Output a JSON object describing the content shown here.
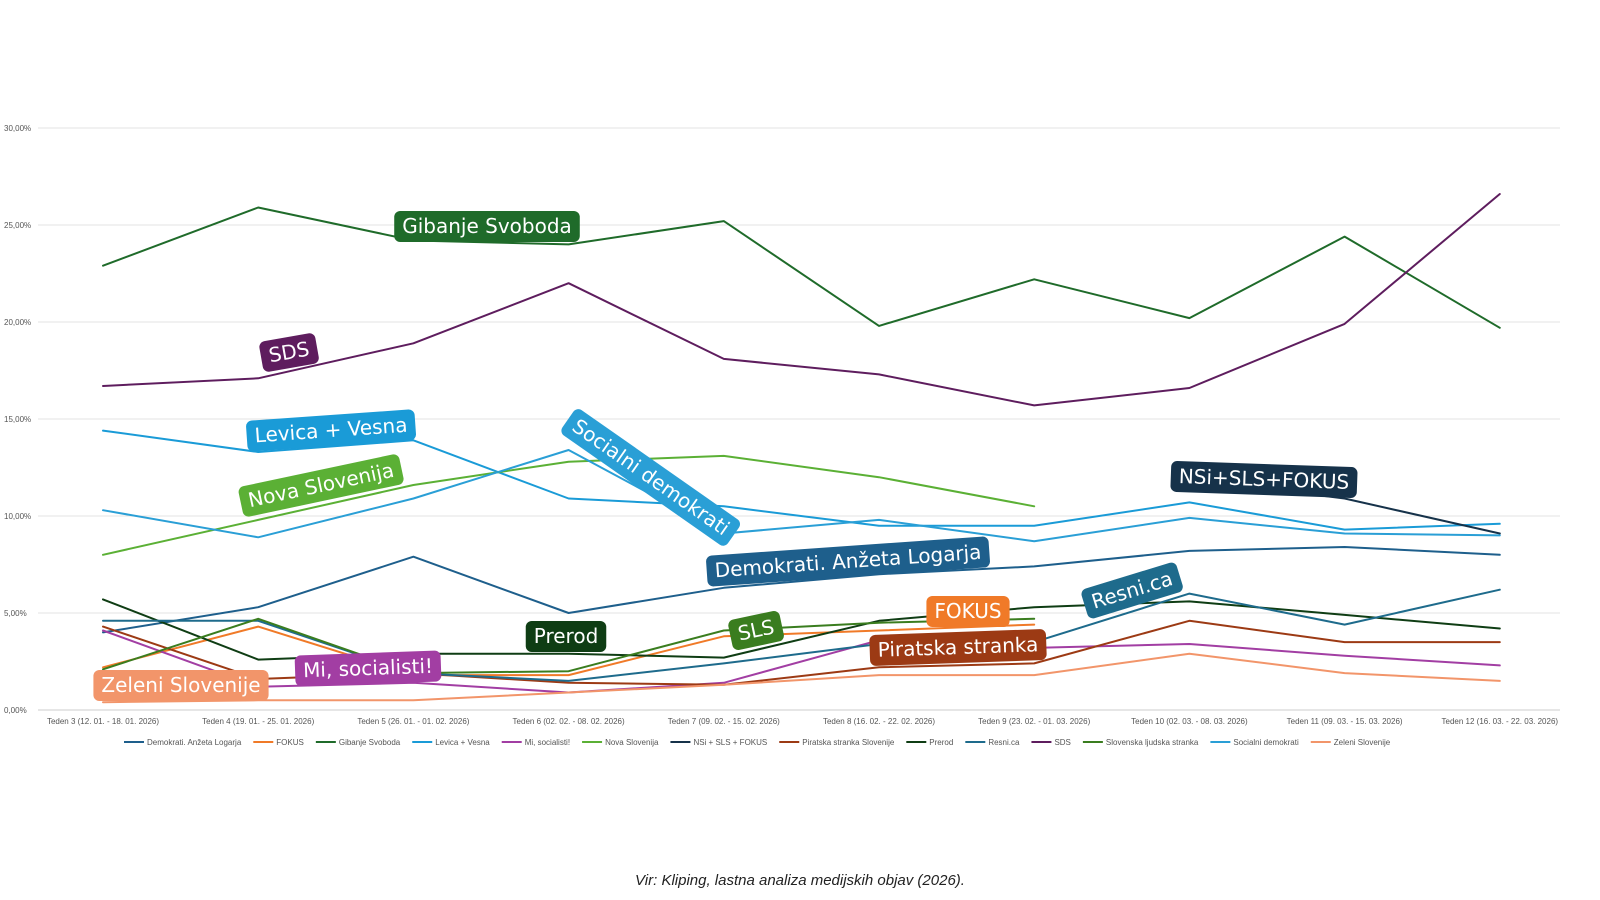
{
  "chart_data": {
    "type": "line",
    "title": "",
    "xlabel": "",
    "ylabel": "",
    "ylim": [
      0,
      30
    ],
    "y_ticks": [
      "0,00%",
      "5,00%",
      "10,00%",
      "15,00%",
      "20,00%",
      "25,00%",
      "30,00%"
    ],
    "grid": true,
    "legend_position": "bottom",
    "categories": [
      "Teden 3 (12. 01. - 18. 01. 2026)",
      "Teden 4 (19. 01. - 25. 01. 2026)",
      "Teden 5 (26. 01. - 01. 02. 2026)",
      "Teden 6 (02. 02. - 08. 02. 2026)",
      "Teden 7 (09. 02. - 15. 02. 2026)",
      "Teden 8 (16. 02. - 22. 02. 2026)",
      "Teden 9 (23. 02. - 01. 03. 2026)",
      "Teden 10 (02. 03. - 08. 03. 2026)",
      "Teden 11 (09. 03. - 15. 03. 2026)",
      "Teden 12 (16. 03. - 22. 03. 2026)"
    ],
    "series": [
      {
        "name": "Demokrati. Anžeta Logarja",
        "color": "#1e5f8c",
        "values": [
          4.0,
          5.3,
          7.9,
          5.0,
          6.3,
          7.0,
          7.4,
          8.2,
          8.4,
          8.0
        ]
      },
      {
        "name": "FOKUS",
        "color": "#f07a28",
        "values": [
          2.2,
          4.3,
          1.8,
          1.8,
          3.8,
          4.1,
          4.4,
          null,
          null,
          null
        ]
      },
      {
        "name": "Gibanje Svoboda",
        "color": "#1f6b2a",
        "values": [
          22.9,
          25.9,
          24.2,
          24.0,
          25.2,
          19.8,
          22.2,
          20.2,
          24.4,
          19.7
        ]
      },
      {
        "name": "Levica + Vesna",
        "color": "#1a9bd7",
        "values": [
          14.4,
          13.3,
          13.9,
          10.9,
          10.5,
          9.5,
          9.5,
          10.7,
          9.3,
          9.6
        ]
      },
      {
        "name": "Mi, socialisti!",
        "color": "#a23ea3",
        "values": [
          4.1,
          1.2,
          1.4,
          0.9,
          1.4,
          3.6,
          3.2,
          3.4,
          2.8,
          2.3
        ]
      },
      {
        "name": "Nova Slovenija",
        "color": "#5bb035",
        "values": [
          8.0,
          9.8,
          11.6,
          12.8,
          13.1,
          12.0,
          10.5,
          null,
          null,
          null
        ]
      },
      {
        "name": "NSi + SLS + FOKUS",
        "color": "#16324a",
        "values": [
          null,
          null,
          null,
          null,
          null,
          null,
          null,
          11.9,
          10.9,
          9.1
        ]
      },
      {
        "name": "Piratska stranka Slovenije",
        "color": "#9c3a14",
        "values": [
          4.3,
          1.6,
          1.9,
          1.4,
          1.3,
          2.2,
          2.4,
          4.6,
          3.5,
          3.5
        ]
      },
      {
        "name": "Prerod",
        "color": "#0f3d14",
        "values": [
          5.7,
          2.6,
          2.9,
          2.9,
          2.7,
          4.6,
          5.3,
          5.6,
          4.9,
          4.2
        ]
      },
      {
        "name": "Resni.ca",
        "color": "#1e6b8c",
        "values": [
          4.6,
          4.6,
          1.9,
          1.5,
          2.4,
          3.4,
          3.5,
          6.0,
          4.4,
          6.2
        ]
      },
      {
        "name": "SDS",
        "color": "#5e1d5e",
        "values": [
          16.7,
          17.1,
          18.9,
          22.0,
          18.1,
          17.3,
          15.7,
          16.6,
          19.9,
          26.6
        ]
      },
      {
        "name": "Slovenska ljudska stranka",
        "color": "#3a7d1f",
        "values": [
          2.1,
          4.7,
          1.9,
          2.0,
          4.1,
          4.5,
          4.7,
          null,
          null,
          null
        ]
      },
      {
        "name": "Socialni demokrati",
        "color": "#2a9fd6",
        "values": [
          10.3,
          8.9,
          10.9,
          13.4,
          9.1,
          9.8,
          8.7,
          9.9,
          9.1,
          9.0
        ]
      },
      {
        "name": "Zeleni Slovenije",
        "color": "#f2956a",
        "values": [
          0.4,
          0.5,
          0.5,
          0.9,
          1.3,
          1.8,
          1.8,
          2.9,
          1.9,
          1.5
        ]
      }
    ],
    "annotations": [
      {
        "text": "Gibanje Svoboda",
        "color": "#1f6b2a"
      },
      {
        "text": "SDS",
        "color": "#5e1d5e"
      },
      {
        "text": "Levica + Vesna",
        "color": "#1a9bd7"
      },
      {
        "text": "Nova Slovenija",
        "color": "#5bb035"
      },
      {
        "text": "Socialni demokrati",
        "color": "#2a9fd6"
      },
      {
        "text": "NSi+SLS+FOKUS",
        "color": "#16324a"
      },
      {
        "text": "Demokrati. Anžeta Logarja",
        "color": "#1e5f8c"
      },
      {
        "text": "FOKUS",
        "color": "#f07a28"
      },
      {
        "text": "Resni.ca",
        "color": "#1e6b8c"
      },
      {
        "text": "Prerod",
        "color": "#0f3d14"
      },
      {
        "text": "SLS",
        "color": "#3a7d1f"
      },
      {
        "text": "Piratska stranka",
        "color": "#9c3a14"
      },
      {
        "text": "Mi, socialisti!",
        "color": "#a23ea3"
      },
      {
        "text": "Zeleni Slovenije",
        "color": "#f2956a"
      }
    ],
    "legend": [
      {
        "text": "Demokrati. Anžeta Logarja",
        "color": "#1e5f8c"
      },
      {
        "text": "FOKUS",
        "color": "#f07a28"
      },
      {
        "text": "Gibanje Svoboda",
        "color": "#1f6b2a"
      },
      {
        "text": "Levica + Vesna",
        "color": "#1a9bd7"
      },
      {
        "text": "Mi, socialisti!",
        "color": "#a23ea3"
      },
      {
        "text": "Nova Slovenija",
        "color": "#5bb035"
      },
      {
        "text": "NSi + SLS + FOKUS",
        "color": "#16324a"
      },
      {
        "text": "Piratska stranka Slovenije",
        "color": "#9c3a14"
      },
      {
        "text": "Prerod",
        "color": "#0f3d14"
      },
      {
        "text": "Resni.ca",
        "color": "#1e6b8c"
      },
      {
        "text": "SDS",
        "color": "#5e1d5e"
      },
      {
        "text": "Slovenska ljudska stranka",
        "color": "#3a7d1f"
      },
      {
        "text": "Socialni demokrati",
        "color": "#2a9fd6"
      },
      {
        "text": "Zeleni Slovenije",
        "color": "#f2956a"
      }
    ]
  },
  "caption": "Vir: Kliping, lastna analiza medijskih objav (2026)."
}
